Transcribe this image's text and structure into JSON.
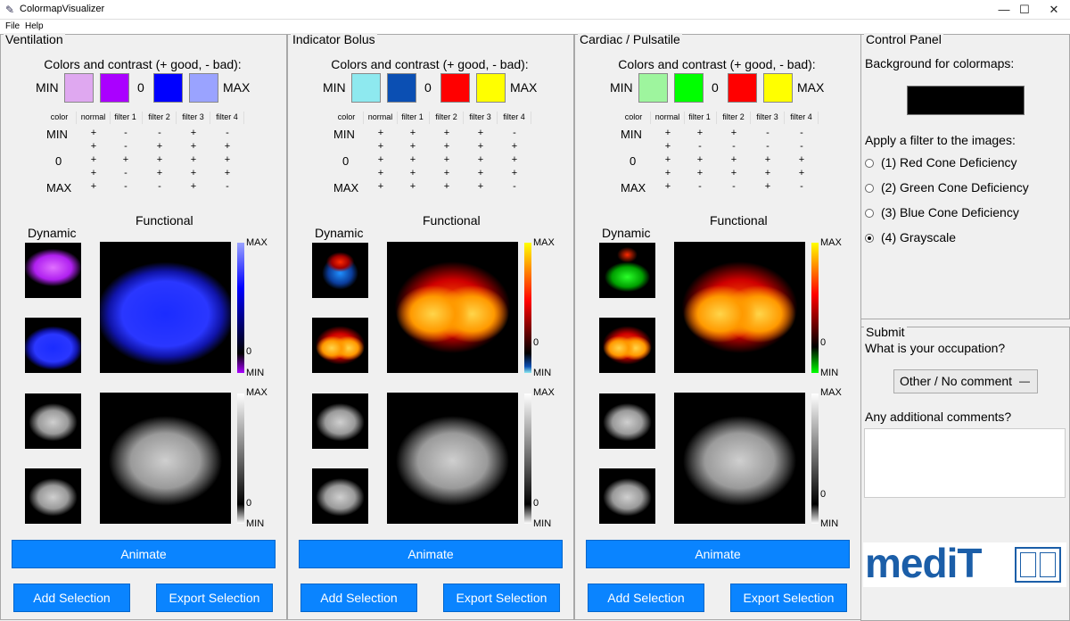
{
  "window": {
    "title": "ColormapVisualizer",
    "minimize": "—",
    "maximize": "☐",
    "close": "✕"
  },
  "menu": {
    "file": "File",
    "help": "Help"
  },
  "common": {
    "cc_title": "Colors and contrast (+ good, - bad):",
    "min": "MIN",
    "zero": "0",
    "max": "MAX",
    "headers": [
      "color",
      "normal",
      "filter 1",
      "filter 2",
      "filter 3",
      "filter 4"
    ],
    "functional": "Functional",
    "dynamic": "Dynamic",
    "animate": "Animate",
    "add_selection": "Add Selection",
    "export_selection": "Export Selection"
  },
  "panels": [
    {
      "title": "Ventilation",
      "swatches": [
        "#dfa8f0",
        "#aa00ff",
        "#0000ff",
        "#9aa3ff"
      ],
      "grid": [
        [
          "+",
          "-",
          "-",
          "+",
          "-"
        ],
        [
          "+",
          "-",
          "+",
          "+",
          "+"
        ],
        [
          "+",
          "+",
          "+",
          "+",
          "+"
        ],
        [
          "+",
          "-",
          "+",
          "+",
          "+"
        ],
        [
          "+",
          "-",
          "-",
          "+",
          "-"
        ]
      ]
    },
    {
      "title": "Indicator Bolus",
      "swatches": [
        "#8ee9ef",
        "#0b4fb3",
        "#ff0000",
        "#ffff00"
      ],
      "grid": [
        [
          "+",
          "+",
          "+",
          "+",
          "-"
        ],
        [
          "+",
          "+",
          "+",
          "+",
          "+"
        ],
        [
          "+",
          "+",
          "+",
          "+",
          "+"
        ],
        [
          "+",
          "+",
          "+",
          "+",
          "+"
        ],
        [
          "+",
          "+",
          "+",
          "+",
          "-"
        ]
      ]
    },
    {
      "title": "Cardiac / Pulsatile",
      "swatches": [
        "#9ef59e",
        "#00ff00",
        "#ff0000",
        "#ffff00"
      ],
      "grid": [
        [
          "+",
          "+",
          "+",
          "-",
          "-"
        ],
        [
          "+",
          "-",
          "-",
          "-",
          "-"
        ],
        [
          "+",
          "+",
          "+",
          "+",
          "+"
        ],
        [
          "+",
          "+",
          "+",
          "+",
          "+"
        ],
        [
          "+",
          "-",
          "-",
          "+",
          "-"
        ]
      ]
    }
  ],
  "control": {
    "title": "Control Panel",
    "bg_label": "Background for colormaps:",
    "bg_color": "#000000",
    "filter_label": "Apply a filter to the images:",
    "options": [
      "(1) Red Cone Deficiency",
      "(2) Green Cone Deficiency",
      "(3) Blue Cone Deficiency",
      "(4) Grayscale"
    ],
    "selected": 3
  },
  "submit": {
    "title": "Submit",
    "occupation_label": "What is your occupation?",
    "occupation_value": "Other / No comment",
    "comments_label": "Any additional comments?",
    "comments_value": ""
  },
  "logo": {
    "text": "mediT"
  }
}
